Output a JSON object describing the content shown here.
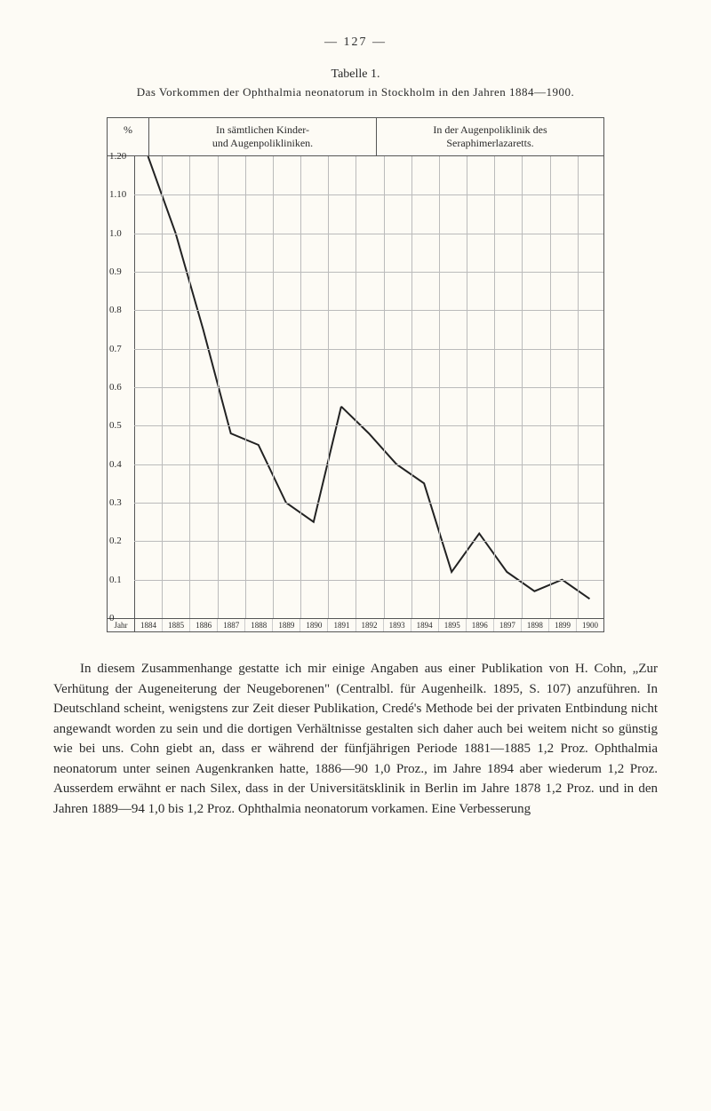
{
  "page_number_dashes": "—    127    —",
  "table_label": "Tabelle 1.",
  "table_caption": "Das Vorkommen der Ophthalmia neonatorum in Stockholm in den Jahren 1884—1900.",
  "chart": {
    "type": "line",
    "header_pct": "%",
    "header_left_line1": "In sämtlichen Kinder-",
    "header_left_line2": "und Augenpolikliniken.",
    "header_right_line1": "In der Augenpoliklinik des",
    "header_right_line2": "Seraphimerlazaretts.",
    "y_labels": [
      "1.20",
      "1.10",
      "1.0",
      "0.9",
      "0.8",
      "0.7",
      "0.6",
      "0.5",
      "0.4",
      "0.3",
      "0.2",
      "0.1",
      "0"
    ],
    "y_min": 0,
    "y_max": 1.2,
    "x_label": "Jahr",
    "x_ticks": [
      "1884",
      "1885",
      "1886",
      "1887",
      "1888",
      "1889",
      "1890",
      "1891",
      "1892",
      "1893",
      "1894",
      "1895",
      "1896",
      "1897",
      "1898",
      "1899",
      "1900"
    ],
    "series_left": {
      "x": [
        0,
        1,
        2,
        3,
        4,
        5,
        6,
        7
      ],
      "y": [
        1.2,
        1.0,
        0.75,
        0.48,
        0.45,
        0.3,
        0.25,
        0.55
      ],
      "color": "#222222",
      "stroke_width": 2
    },
    "series_right": {
      "x": [
        7,
        8,
        9,
        10,
        11,
        12,
        13,
        14,
        15,
        16
      ],
      "y": [
        0.55,
        0.48,
        0.4,
        0.35,
        0.12,
        0.22,
        0.12,
        0.07,
        0.1,
        0.05
      ],
      "color": "#222222",
      "stroke_width": 2
    },
    "background": "#fdfbf5",
    "grid_color": "#bbbbbb",
    "border_color": "#555555"
  },
  "paragraph": "In diesem Zusammenhange gestatte ich mir einige Angaben aus einer Publikation von H. Cohn, „Zur Verhütung der Augeneiterung der Neugeborenen\" (Centralbl. für Augenheilk. 1895, S. 107) anzuführen. In Deutschland scheint, wenigstens zur Zeit dieser Publikation, Credé's Methode bei der privaten Entbindung nicht angewandt worden zu sein und die dortigen Verhältnisse gestalten sich daher auch bei weitem nicht so günstig wie bei uns. Cohn giebt an, dass er während der fünfjährigen Periode 1881—1885 1,2 Proz. Ophthalmia neonatorum unter seinen Augenkranken hatte, 1886—90 1,0 Proz., im Jahre 1894 aber wiederum 1,2 Proz. Ausserdem erwähnt er nach Silex, dass in der Universitätsklinik in Berlin im Jahre 1878 1,2 Proz. und in den Jahren 1889—94 1,0 bis 1,2 Proz. Ophthalmia neonatorum vorkamen. Eine Verbesserung"
}
